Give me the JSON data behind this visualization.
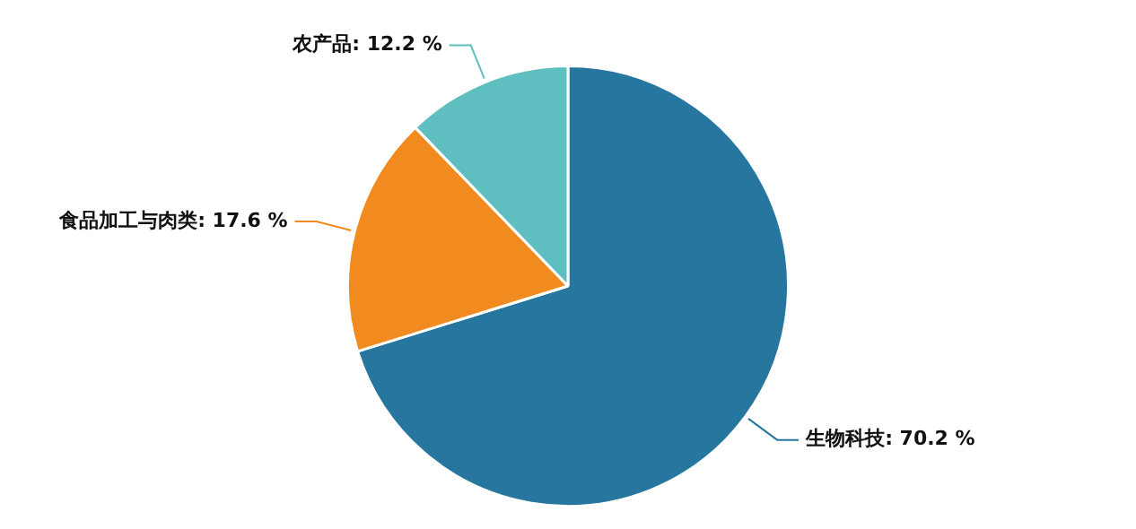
{
  "chart_data": {
    "type": "pie",
    "categories": [
      "生物科技",
      "食品加工与肉类",
      "农产品"
    ],
    "values": [
      70.2,
      17.6,
      12.2
    ],
    "colors": [
      "#26769f",
      "#f28b1f",
      "#5fbec0"
    ],
    "value_labels": [
      "70.2 %",
      "17.6 %",
      "12.2 %"
    ],
    "legend": false
  }
}
